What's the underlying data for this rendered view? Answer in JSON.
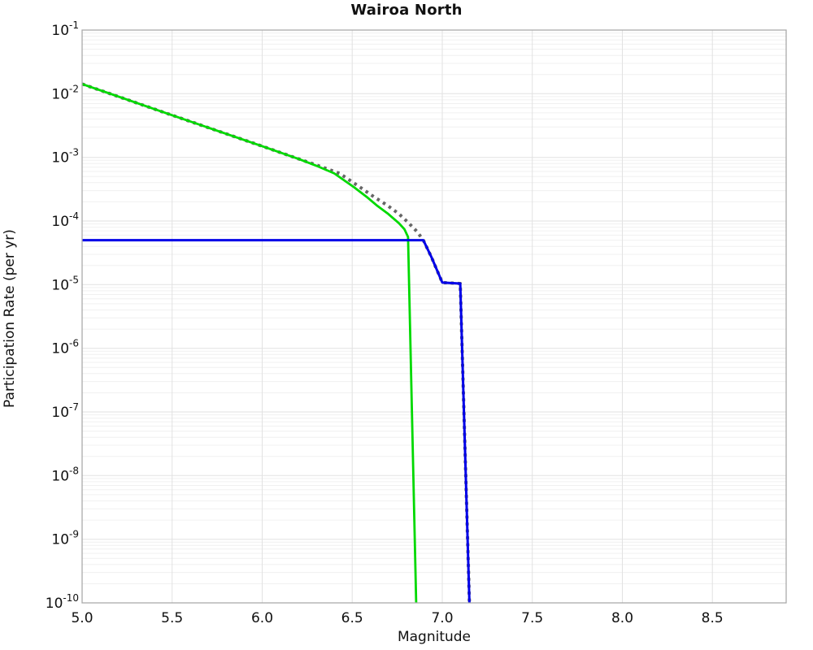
{
  "title": "Wairoa North",
  "axes": {
    "xlabel": "Magnitude",
    "ylabel": "Participation Rate (per yr)",
    "x_ticks": [
      {
        "value": 5.0,
        "label": "5.0"
      },
      {
        "value": 5.5,
        "label": "5.5"
      },
      {
        "value": 6.0,
        "label": "6.0"
      },
      {
        "value": 6.5,
        "label": "6.5"
      },
      {
        "value": 7.0,
        "label": "7.0"
      },
      {
        "value": 7.5,
        "label": "7.5"
      },
      {
        "value": 8.0,
        "label": "8.0"
      },
      {
        "value": 8.5,
        "label": "8.5"
      }
    ],
    "y_ticks": [
      {
        "base": "10",
        "exp": -1
      },
      {
        "base": "10",
        "exp": -2
      },
      {
        "base": "10",
        "exp": -3
      },
      {
        "base": "10",
        "exp": -4
      },
      {
        "base": "10",
        "exp": -5
      },
      {
        "base": "10",
        "exp": -6
      },
      {
        "base": "10",
        "exp": -7
      },
      {
        "base": "10",
        "exp": -8
      },
      {
        "base": "10",
        "exp": -9
      },
      {
        "base": "10",
        "exp": -10
      }
    ]
  },
  "colors": {
    "green": "#00d900",
    "blue": "#0000e8",
    "gray": "#666666",
    "grid_major": "#e2e2e2",
    "grid_minor": "#f0f0f0",
    "frame": "#aaaaaa",
    "text": "#111111"
  },
  "chart_data": {
    "type": "line",
    "title": "Wairoa North",
    "xlabel": "Magnitude",
    "ylabel": "Participation Rate (per yr)",
    "xlim": [
      5.0,
      8.91
    ],
    "ylim": [
      1e-10,
      0.1
    ],
    "yscale": "log",
    "grid": true,
    "legend": "none",
    "series": [
      {
        "name": "gray-dotted",
        "color": "#666666",
        "style": "dotted",
        "width": 4,
        "points": [
          [
            5.0,
            0.0142
          ],
          [
            5.5,
            0.0046
          ],
          [
            6.0,
            0.0015
          ],
          [
            6.2,
            0.00095
          ],
          [
            6.3,
            0.00076
          ],
          [
            6.43,
            0.00056
          ],
          [
            6.55,
            0.00033
          ],
          [
            6.62,
            0.00024
          ],
          [
            6.69,
            0.00018
          ],
          [
            6.76,
            0.000129
          ],
          [
            6.815,
            9.2e-05
          ],
          [
            6.86,
            6.8e-05
          ],
          [
            6.895,
            5e-05
          ],
          [
            6.94,
            2.7e-05
          ],
          [
            7.0,
            1.08e-05
          ],
          [
            7.1,
            1.04e-05
          ],
          [
            7.151,
            1e-10
          ]
        ]
      },
      {
        "name": "green-solid",
        "color": "#00d900",
        "style": "solid",
        "width": 2.8,
        "points": [
          [
            5.0,
            0.0142
          ],
          [
            5.5,
            0.0046
          ],
          [
            6.0,
            0.0015
          ],
          [
            6.2,
            0.00095
          ],
          [
            6.3,
            0.00074
          ],
          [
            6.4,
            0.00056
          ],
          [
            6.51,
            0.00034
          ],
          [
            6.58,
            0.00024
          ],
          [
            6.64,
            0.000173
          ],
          [
            6.7,
            0.000129
          ],
          [
            6.76,
            9.2e-05
          ],
          [
            6.79,
            7.4e-05
          ],
          [
            6.81,
            5.6e-05
          ],
          [
            6.855,
            1e-10
          ]
        ]
      },
      {
        "name": "blue-solid",
        "color": "#0000e8",
        "style": "solid",
        "width": 3,
        "points": [
          [
            5.0,
            5e-05
          ],
          [
            6.895,
            5e-05
          ],
          [
            6.94,
            2.7e-05
          ],
          [
            7.0,
            1.08e-05
          ],
          [
            7.1,
            1.04e-05
          ],
          [
            7.151,
            1e-10
          ]
        ]
      }
    ]
  }
}
